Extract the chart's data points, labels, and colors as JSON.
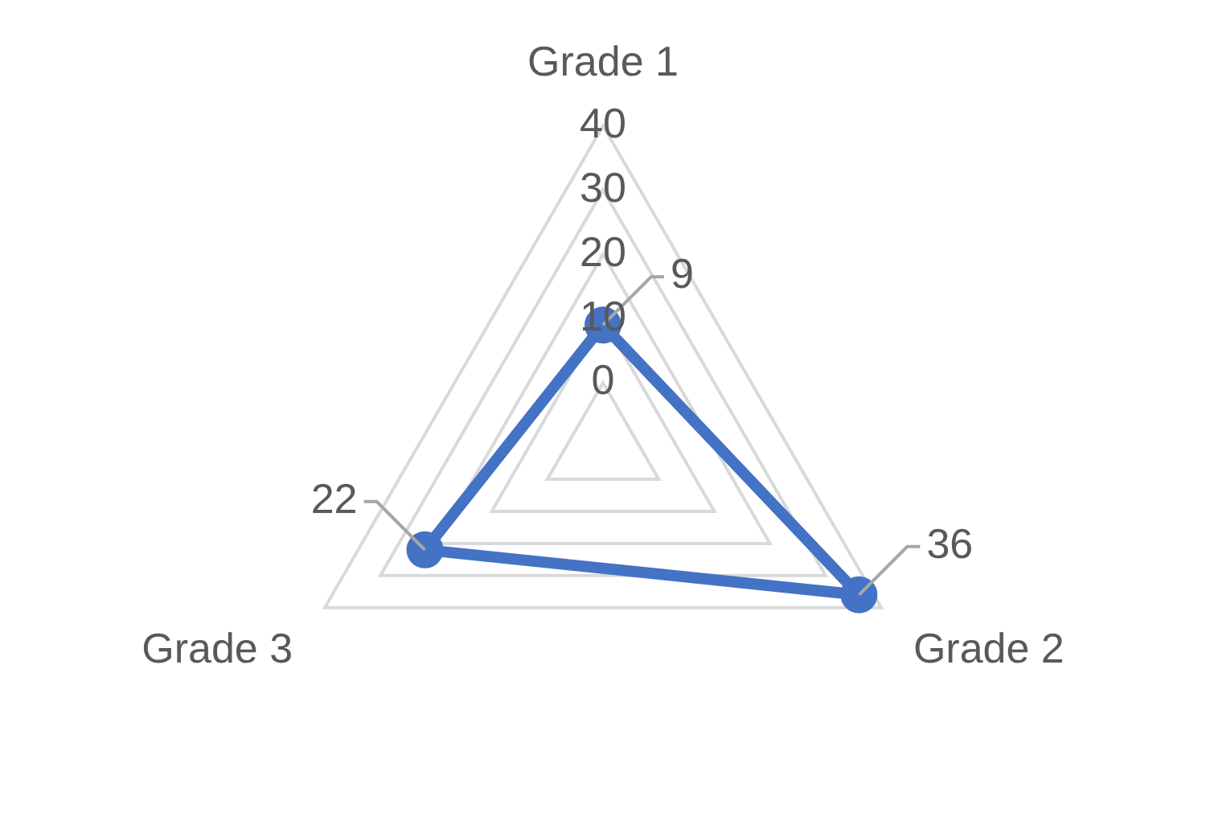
{
  "chart_data": {
    "type": "radar",
    "categories": [
      "Grade 1",
      "Grade 2",
      "Grade 3"
    ],
    "series": [
      {
        "color": "#4472c4",
        "values": [
          9,
          36,
          22
        ]
      }
    ],
    "ylim": [
      -10,
      40
    ],
    "yticks": [
      0,
      10,
      20,
      30,
      40
    ],
    "grid": true,
    "legend": false,
    "marker": "circle",
    "data_labels": true
  }
}
